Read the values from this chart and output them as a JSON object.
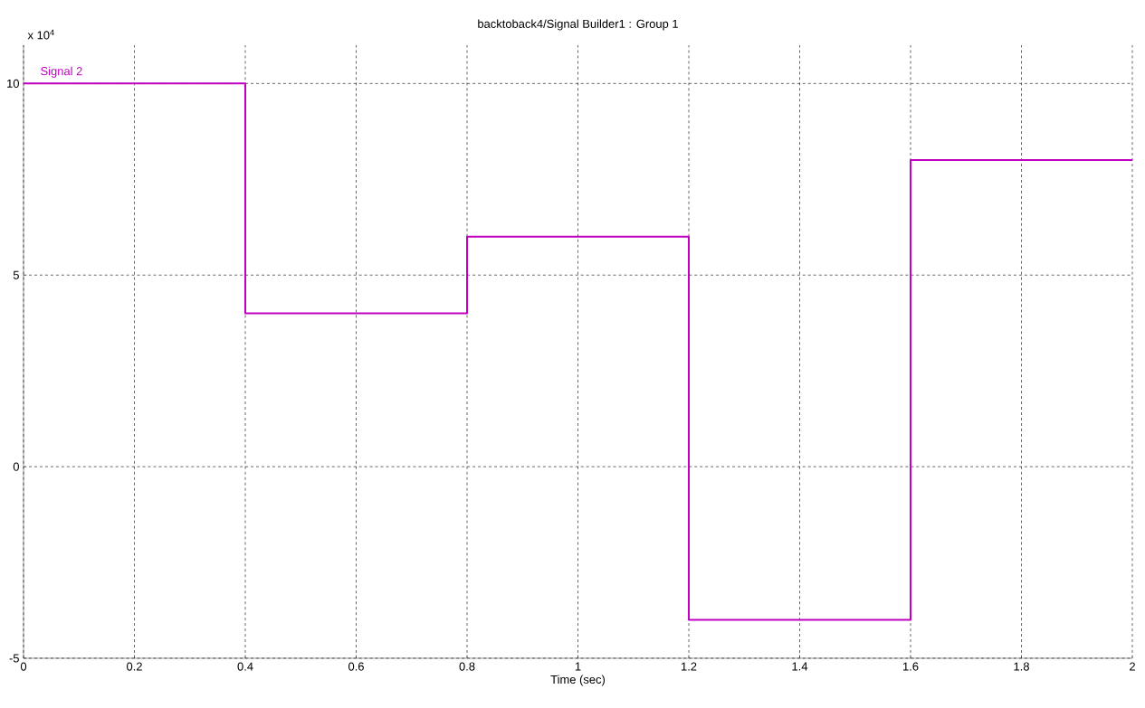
{
  "chart_data": {
    "type": "step",
    "title": "backtoback4/Signal Builder1 : Group 1",
    "xlabel": "Time (sec)",
    "annotations": [
      "x 10$^{4}$"
    ],
    "x": [
      0,
      0.4,
      0.8,
      1.2,
      1.6,
      2
    ],
    "series": [
      {
        "name": "Signal 2",
        "color": "#c000c0",
        "values": [
          10,
          4,
          6,
          -4,
          8,
          8
        ]
      }
    ],
    "xlim": [
      0,
      2
    ],
    "ylim": [
      -5,
      11
    ],
    "xticks": [
      0,
      0.2,
      0.4,
      0.6,
      0.8,
      1,
      1.2,
      1.4,
      1.6,
      1.8,
      2
    ],
    "yticks": [
      -5,
      0,
      5,
      10
    ],
    "grid": true,
    "line_style": "solid",
    "marker": "none"
  }
}
